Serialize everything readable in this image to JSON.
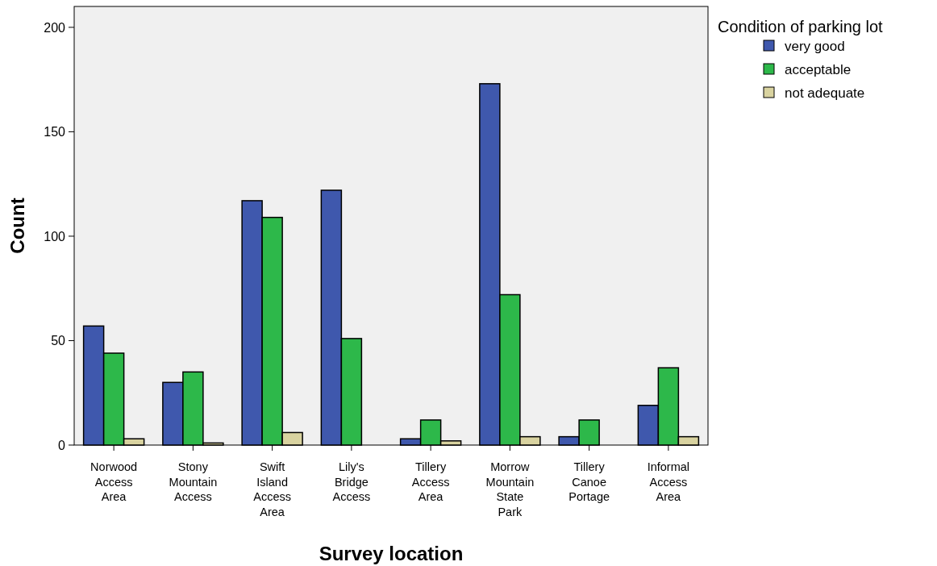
{
  "chart_data": {
    "type": "bar",
    "xlabel": "Survey location",
    "ylabel": "Count",
    "legend_title": "Condition of parking lot",
    "legend": "top right",
    "categories": [
      "Norwood Access Area",
      "Stony Mountain Access",
      "Swift Island Access Area",
      "Lily's Bridge Access",
      "Tillery Access Area",
      "Morrow Mountain State Park",
      "Tillery Canoe Portage",
      "Informal Access Area"
    ],
    "series": [
      {
        "name": "very good",
        "color": "#3f58ad",
        "values": [
          57,
          30,
          117,
          122,
          3,
          173,
          4,
          19
        ]
      },
      {
        "name": "acceptable",
        "color": "#2db84a",
        "values": [
          44,
          35,
          109,
          51,
          12,
          72,
          12,
          37
        ]
      },
      {
        "name": "not adequate",
        "color": "#d9d3a0",
        "values": [
          3,
          1,
          6,
          null,
          2,
          4,
          null,
          4
        ]
      }
    ],
    "ylim": [
      0,
      210
    ],
    "yticks": [
      0,
      50,
      100,
      150,
      200
    ]
  }
}
